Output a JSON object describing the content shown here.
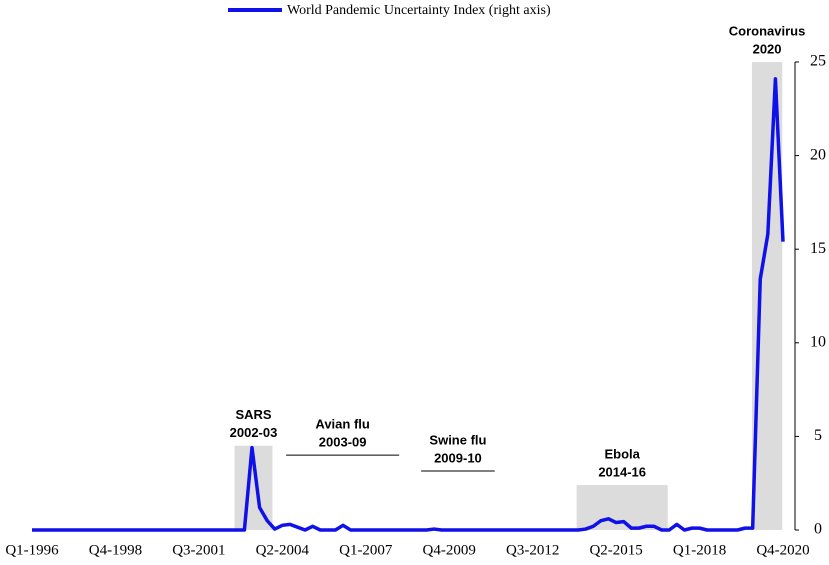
{
  "chart_data": {
    "type": "line",
    "legend": "top",
    "categories": [
      "Q1-1996",
      null,
      null,
      null,
      null,
      null,
      null,
      null,
      null,
      null,
      null,
      "Q4-1998",
      null,
      null,
      null,
      null,
      null,
      null,
      null,
      null,
      null,
      null,
      "Q3-2001",
      null,
      null,
      null,
      null,
      null,
      null,
      null,
      null,
      null,
      null,
      "Q2-2004",
      null,
      null,
      null,
      null,
      null,
      null,
      null,
      null,
      null,
      null,
      "Q1-2007",
      null,
      null,
      null,
      null,
      null,
      null,
      null,
      null,
      null,
      null,
      "Q4-2009",
      null,
      null,
      null,
      null,
      null,
      null,
      null,
      null,
      null,
      null,
      "Q3-2012",
      null,
      null,
      null,
      null,
      null,
      null,
      null,
      null,
      null,
      null,
      "Q2-2015",
      null,
      null,
      null,
      null,
      null,
      null,
      null,
      null,
      null,
      null,
      "Q1-2018",
      null,
      null,
      null,
      null,
      null,
      null,
      null,
      null,
      null,
      null,
      "Q4-2020"
    ],
    "series": [
      {
        "name": "World Pandemic Uncertainty Index (right axis)",
        "color": "#1010e8",
        "axis": "y2",
        "values": [
          0,
          0,
          0,
          0,
          0,
          0,
          0,
          0,
          0,
          0,
          0,
          0,
          0,
          0,
          0,
          0,
          0,
          0,
          0,
          0,
          0,
          0,
          0,
          0,
          0,
          0,
          0,
          0,
          0,
          4.4,
          1.2,
          0.5,
          0.05,
          0.25,
          0.3,
          0.15,
          0,
          0.2,
          0,
          0,
          0,
          0.25,
          0,
          0,
          0,
          0,
          0,
          0,
          0,
          0,
          0,
          0,
          0,
          0.05,
          0,
          0,
          0,
          0,
          0,
          0,
          0,
          0,
          0,
          0,
          0,
          0,
          0,
          0,
          0,
          0,
          0,
          0,
          0,
          0.05,
          0.2,
          0.5,
          0.6,
          0.4,
          0.45,
          0.1,
          0.1,
          0.2,
          0.2,
          0,
          0,
          0.3,
          0,
          0.1,
          0.1,
          0,
          0,
          0,
          0,
          0,
          0.1,
          0.1,
          13.4,
          15.8,
          24.1,
          15.4
        ]
      }
    ],
    "y2lim": [
      0,
      25
    ],
    "y2ticks": [
      0,
      5,
      10,
      15,
      20,
      25
    ],
    "annotations": [
      {
        "kind": "shade",
        "lines": [
          "SARS",
          "2002-03"
        ],
        "from": 26.7,
        "to": 31.7,
        "top": 4.5
      },
      {
        "kind": "bracket",
        "lines": [
          "Avian flu",
          "2003-09"
        ],
        "from": 33.5,
        "to": 48.4,
        "top": 4.0
      },
      {
        "kind": "bracket",
        "lines": [
          "Swine flu",
          "2009-10"
        ],
        "from": 51.3,
        "to": 61,
        "top": 3.15
      },
      {
        "kind": "shade",
        "lines": [
          "Ebola",
          "2014-16"
        ],
        "from": 71.8,
        "to": 83.8,
        "top": 2.4
      },
      {
        "kind": "shade",
        "lines": [
          "Coronavirus",
          "2020"
        ],
        "from": 94.9,
        "to": 98.9,
        "top": 25
      }
    ]
  }
}
